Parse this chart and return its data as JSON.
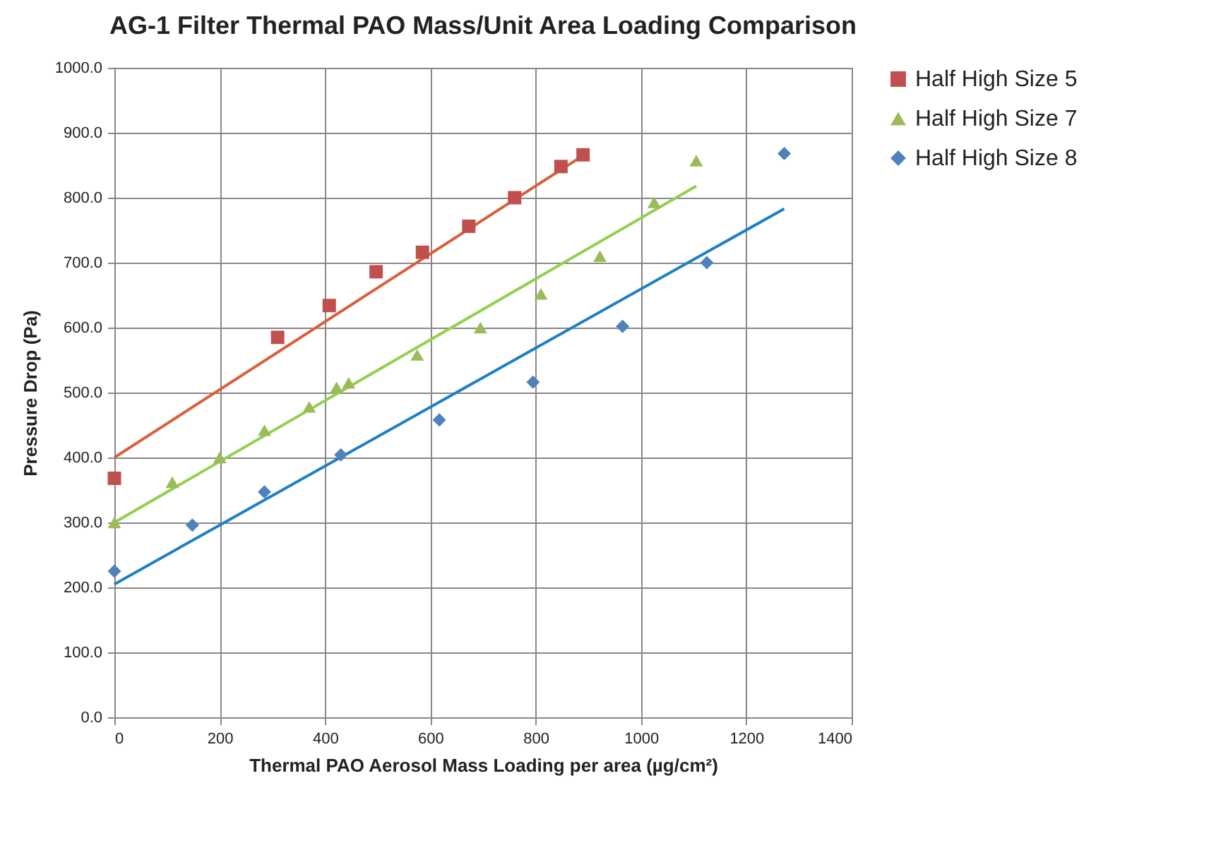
{
  "chart_data": {
    "type": "scatter",
    "title": "AG-1 Filter Thermal PAO Mass/Unit Area Loading Comparison",
    "xlabel": "Thermal PAO Aerosol Mass Loading per area (µg/cm²)",
    "ylabel": "Pressure Drop (Pa)",
    "xlim": [
      0,
      1400
    ],
    "xticks": [
      0,
      200,
      400,
      600,
      800,
      1000,
      1200,
      1400
    ],
    "ylim": [
      0,
      1000
    ],
    "yticks": [
      {
        "value": 0,
        "label": "0.0"
      },
      {
        "value": 100,
        "label": "100.0"
      },
      {
        "value": 200,
        "label": "200.0"
      },
      {
        "value": 300,
        "label": "300.0"
      },
      {
        "value": 400,
        "label": "400.0"
      },
      {
        "value": 500,
        "label": "500.0"
      },
      {
        "value": 600,
        "label": "600.0"
      },
      {
        "value": 700,
        "label": "700.0"
      },
      {
        "value": 800,
        "label": "800.0"
      },
      {
        "value": 900,
        "label": "900.0"
      },
      {
        "value": 1000,
        "label": "1000.0"
      }
    ],
    "grid": true,
    "legend": "right",
    "series": [
      {
        "name": "Half High Size 5",
        "color": "#c0504d",
        "marker": "square",
        "x": [
          0,
          310,
          408,
          497,
          585,
          673,
          760,
          848,
          890
        ],
        "values": [
          368,
          585,
          634,
          686,
          716,
          756,
          800,
          848,
          866
        ]
      },
      {
        "name": "Half High Size 7",
        "color": "#9bbb59",
        "marker": "triangle",
        "x": [
          0,
          110,
          200,
          285,
          370,
          422,
          445,
          575,
          695,
          810,
          922,
          1025,
          1105
        ],
        "values": [
          300,
          362,
          400,
          442,
          478,
          508,
          515,
          558,
          600,
          652,
          710,
          793,
          857
        ]
      },
      {
        "name": "Half High Size 8",
        "color": "#4f81bd",
        "marker": "diamond",
        "x": [
          0,
          148,
          285,
          430,
          617,
          795,
          965,
          1125,
          1272
        ],
        "values": [
          225,
          296,
          347,
          404,
          458,
          516,
          602,
          700,
          868
        ]
      },
      {
        "type": "line",
        "color": "#d9603b",
        "x": [
          0,
          890
        ],
        "values": [
          400,
          865
        ]
      },
      {
        "type": "line",
        "color": "#92d050",
        "x": [
          0,
          1105
        ],
        "values": [
          300,
          818
        ]
      },
      {
        "type": "line",
        "color": "#1f7fc4",
        "x": [
          0,
          1272
        ],
        "values": [
          205,
          783
        ]
      }
    ]
  }
}
